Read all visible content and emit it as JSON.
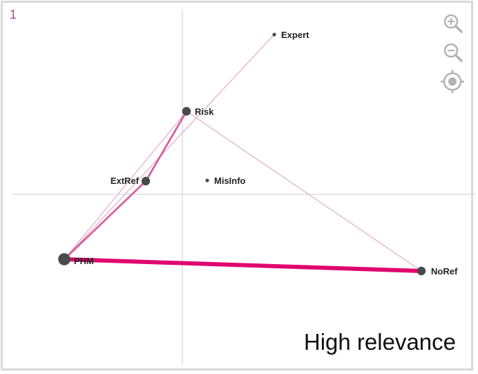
{
  "panel_number": "1",
  "caption": "High relevance",
  "toolbar": {
    "zoom_in_icon": "zoom-in-icon",
    "zoom_out_icon": "zoom-out-icon",
    "recenter_icon": "target-icon"
  },
  "colors": {
    "edge_strong": "#e0066f",
    "edge_medium": "#d9609f",
    "edge_weak": "#e3b3c9",
    "node": "#4a4a4a",
    "axis": "#d8d8d8",
    "tool_icon": "#b3b3b3"
  },
  "network": {
    "nodes": [
      {
        "id": "Expert",
        "label": "Expert",
        "size": "small"
      },
      {
        "id": "Risk",
        "label": "Risk",
        "size": "medium"
      },
      {
        "id": "ExtRef",
        "label": "ExtRef",
        "size": "medium"
      },
      {
        "id": "MisInfo",
        "label": "MisInfo",
        "size": "small"
      },
      {
        "id": "PHM",
        "label": "PHM",
        "size": "large"
      },
      {
        "id": "NoRef",
        "label": "NoRef",
        "size": "medium"
      }
    ],
    "edges": [
      {
        "source": "PHM",
        "target": "NoRef",
        "strength": "strong"
      },
      {
        "source": "PHM",
        "target": "ExtRef",
        "strength": "medium"
      },
      {
        "source": "ExtRef",
        "target": "Risk",
        "strength": "medium"
      },
      {
        "source": "Risk",
        "target": "NoRef",
        "strength": "weak"
      },
      {
        "source": "PHM",
        "target": "Expert",
        "strength": "weak"
      },
      {
        "source": "PHM",
        "target": "Risk",
        "strength": "weak"
      }
    ]
  }
}
